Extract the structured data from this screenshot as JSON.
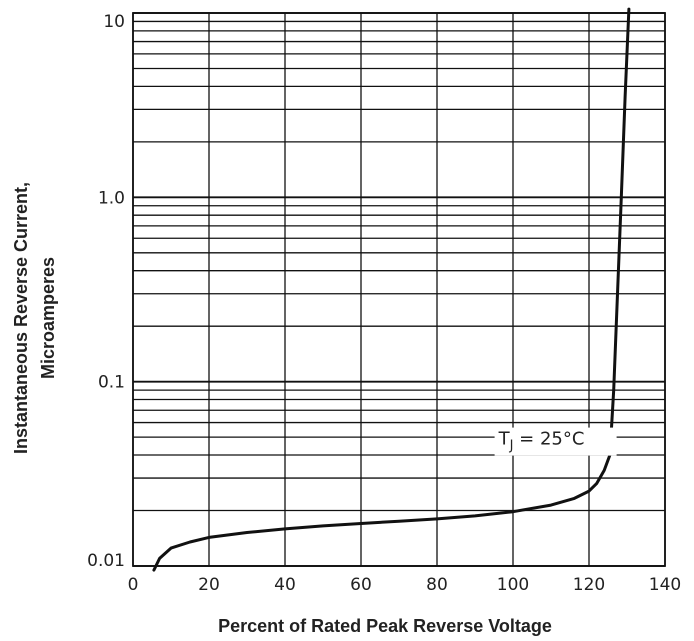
{
  "chart_data": {
    "type": "line",
    "xlabel": "Percent of Rated Peak Reverse Voltage",
    "ylabel_line1": "Instantaneous Reverse Current,",
    "ylabel_line2": "Microamperes",
    "x_ticks": [
      "0",
      "20",
      "40",
      "60",
      "80",
      "100",
      "120",
      "140"
    ],
    "x_tick_values": [
      0,
      20,
      40,
      60,
      80,
      100,
      120,
      140
    ],
    "y_ticks": [
      "0.01",
      "0.1",
      "1.0",
      "10"
    ],
    "y_tick_values": [
      0.01,
      0.1,
      1.0,
      10
    ],
    "xlim": [
      0,
      140
    ],
    "ylim": [
      0.01,
      10
    ],
    "y_scale": "log",
    "grid": true,
    "annotation": {
      "prefix": "T",
      "subscript": "J",
      "suffix": " = 25°C",
      "x": 97,
      "y": 0.045
    },
    "series": [
      {
        "x": [
          5.5,
          7,
          10,
          15,
          20,
          30,
          40,
          50,
          60,
          70,
          80,
          90,
          100,
          110,
          116,
          120,
          122,
          124,
          125.5,
          126.5,
          127.5,
          128.5,
          129.5,
          130.5
        ],
        "y": [
          0.0095,
          0.011,
          0.0125,
          0.0135,
          0.0143,
          0.0152,
          0.0159,
          0.0165,
          0.017,
          0.0175,
          0.018,
          0.0187,
          0.0197,
          0.0214,
          0.0232,
          0.0255,
          0.028,
          0.033,
          0.04,
          0.09,
          0.3,
          1.0,
          3.5,
          10.5
        ]
      }
    ]
  },
  "colors": {
    "line": "#111111",
    "grid": "#111111",
    "text": "#222222"
  }
}
